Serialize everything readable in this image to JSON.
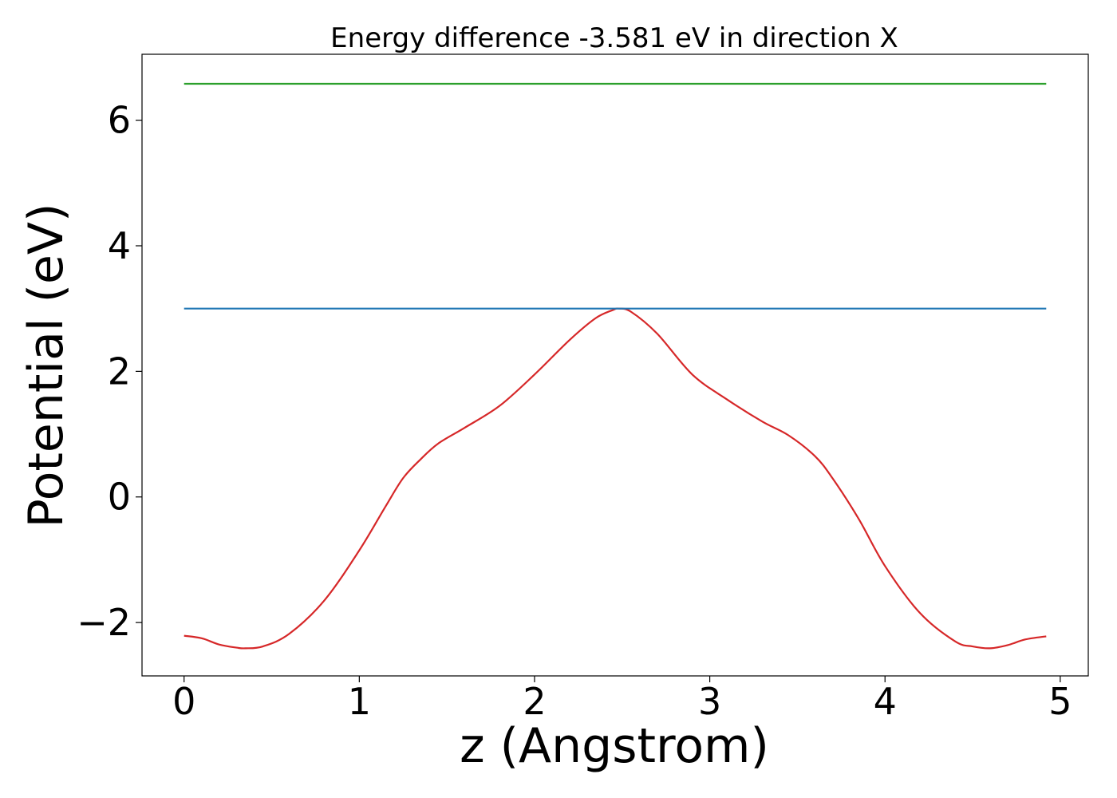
{
  "chart_data": {
    "type": "line",
    "title": "Energy difference -3.581 eV in direction X",
    "xlabel": "z (Angstrom)",
    "ylabel": "Potential (eV)",
    "xlim": [
      -0.24,
      5.16
    ],
    "ylim": [
      -2.85,
      7.05
    ],
    "xticks": [
      0,
      1,
      2,
      3,
      4,
      5
    ],
    "yticks": [
      -2,
      0,
      2,
      4,
      6
    ],
    "xtick_labels": [
      "0",
      "1",
      "2",
      "3",
      "4",
      "5"
    ],
    "ytick_labels": [
      "−2",
      "0",
      "2",
      "4",
      "6"
    ],
    "grid": false,
    "legend": false,
    "series": [
      {
        "color": "#d62728",
        "x": [
          0,
          0.1,
          0.2,
          0.3,
          0.35,
          0.45,
          0.6,
          0.8,
          1.0,
          1.15,
          1.25,
          1.35,
          1.45,
          1.6,
          1.8,
          2.0,
          2.2,
          2.35,
          2.45,
          2.48,
          2.55,
          2.7,
          2.9,
          3.1,
          3.3,
          3.45,
          3.6,
          3.7,
          3.85,
          4.0,
          4.2,
          4.4,
          4.5,
          4.6,
          4.7,
          4.8,
          4.92
        ],
        "y": [
          -2.21,
          -2.25,
          -2.35,
          -2.4,
          -2.41,
          -2.38,
          -2.18,
          -1.65,
          -0.85,
          -0.15,
          0.3,
          0.6,
          0.85,
          1.1,
          1.45,
          1.95,
          2.5,
          2.85,
          2.98,
          3.0,
          2.95,
          2.6,
          1.95,
          1.55,
          1.2,
          0.98,
          0.65,
          0.3,
          -0.35,
          -1.1,
          -1.85,
          -2.3,
          -2.38,
          -2.41,
          -2.36,
          -2.27,
          -2.22
        ]
      },
      {
        "color": "#1f77b4",
        "x": [
          0,
          4.92
        ],
        "y": [
          3.0,
          3.0
        ]
      },
      {
        "color": "#2ca02c",
        "x": [
          0,
          4.92
        ],
        "y": [
          6.58,
          6.58
        ]
      }
    ]
  }
}
